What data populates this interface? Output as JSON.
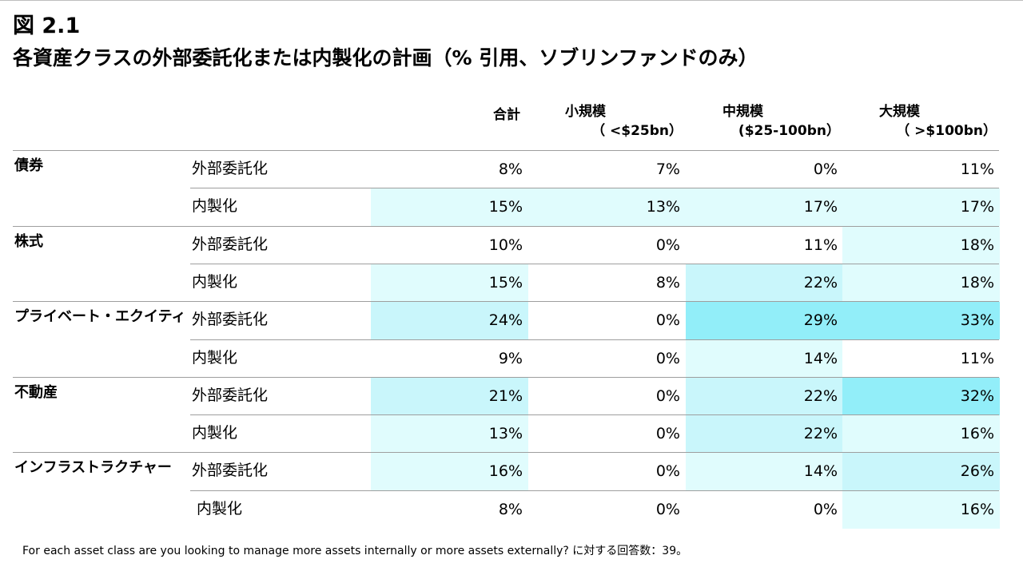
{
  "figure_label": "図 2.1",
  "title": "各資産クラスの外部委託化または内製化の計画（% 引用、ソブリンファンドのみ）",
  "footnote": "For each asset class are you looking to manage more assets internally or more assets externally?  に対する回答数：39。",
  "chart_data": {
    "type": "table",
    "columns": [
      {
        "line1": "合計",
        "line2": ""
      },
      {
        "line1": "小規模",
        "line2": "（ <$25bn）"
      },
      {
        "line1": "中規模",
        "line2": "($25-100bn）"
      },
      {
        "line1": "大規模",
        "line2": "（ >$100bn）"
      }
    ],
    "plans": [
      "外部委託化",
      "内製化"
    ],
    "rows": [
      {
        "asset": "債券",
        "plan": "外部委託化",
        "values": [
          "8%",
          "7%",
          "0%",
          "11%"
        ]
      },
      {
        "asset": "",
        "plan": "内製化",
        "values": [
          "15%",
          "13%",
          "17%",
          "17%"
        ]
      },
      {
        "asset": "株式",
        "plan": "外部委託化",
        "values": [
          "10%",
          "0%",
          "11%",
          "18%"
        ]
      },
      {
        "asset": "",
        "plan": "内製化",
        "values": [
          "15%",
          "8%",
          "22%",
          "18%"
        ]
      },
      {
        "asset": "プライベート・エクイティ",
        "plan": "外部委託化",
        "values": [
          "24%",
          "0%",
          "29%",
          "33%"
        ]
      },
      {
        "asset": "",
        "plan": "内製化",
        "values": [
          "9%",
          "0%",
          "14%",
          "11%"
        ]
      },
      {
        "asset": "不動産",
        "plan": "外部委託化",
        "values": [
          "21%",
          "0%",
          "22%",
          "32%"
        ]
      },
      {
        "asset": "",
        "plan": "内製化",
        "values": [
          "13%",
          "0%",
          "22%",
          "16%"
        ]
      },
      {
        "asset": "インフラストラクチャー",
        "plan": "外部委託化",
        "values": [
          "16%",
          "0%",
          "14%",
          "26%"
        ]
      },
      {
        "asset": "",
        "plan": "内製化",
        "values": [
          "8%",
          "0%",
          "0%",
          "16%"
        ]
      }
    ],
    "heat_colors": {
      "low": "#ffffff",
      "mid": "#c9f6fb",
      "high": "#92eef9"
    }
  }
}
